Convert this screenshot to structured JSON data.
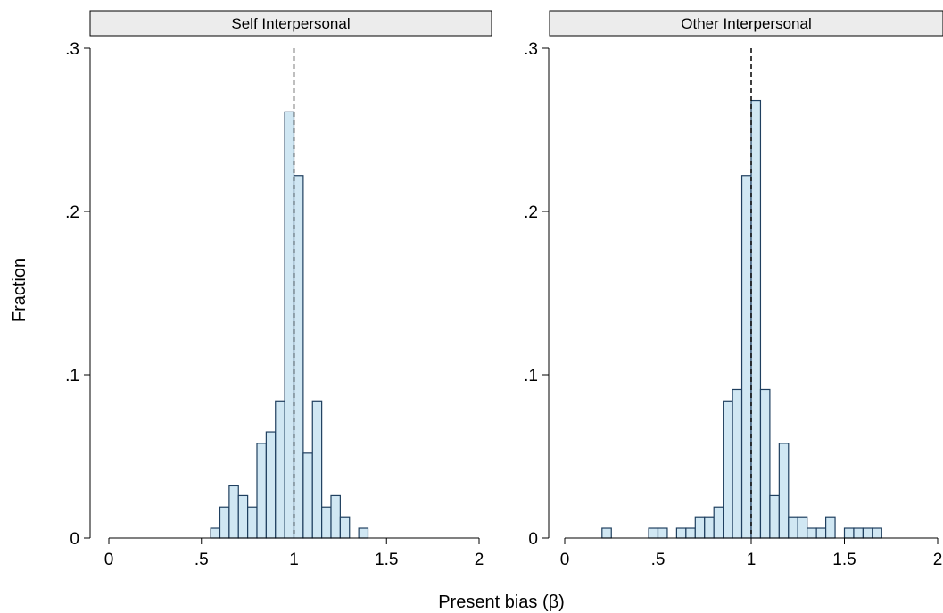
{
  "chart_data": [
    {
      "type": "bar",
      "title": "Self Interpersonal",
      "bin_width": 0.05,
      "ylim": [
        0,
        0.3
      ],
      "xlim": [
        0,
        2
      ],
      "xticks": [
        {
          "v": 0,
          "label": "0"
        },
        {
          "v": 0.5,
          "label": ".5"
        },
        {
          "v": 1,
          "label": "1"
        },
        {
          "v": 1.5,
          "label": "1.5"
        },
        {
          "v": 2,
          "label": "2"
        }
      ],
      "yticks": [
        {
          "v": 0,
          "label": "0"
        },
        {
          "v": 0.1,
          "label": ".1"
        },
        {
          "v": 0.2,
          "label": ".2"
        },
        {
          "v": 0.3,
          "label": ".3"
        }
      ],
      "reference_line_x": 1,
      "bins": [
        {
          "x": 0.55,
          "y": 0.006
        },
        {
          "x": 0.6,
          "y": 0.019
        },
        {
          "x": 0.65,
          "y": 0.032
        },
        {
          "x": 0.7,
          "y": 0.026
        },
        {
          "x": 0.75,
          "y": 0.019
        },
        {
          "x": 0.8,
          "y": 0.058
        },
        {
          "x": 0.85,
          "y": 0.065
        },
        {
          "x": 0.9,
          "y": 0.084
        },
        {
          "x": 0.95,
          "y": 0.261
        },
        {
          "x": 1.0,
          "y": 0.222
        },
        {
          "x": 1.05,
          "y": 0.052
        },
        {
          "x": 1.1,
          "y": 0.084
        },
        {
          "x": 1.15,
          "y": 0.019
        },
        {
          "x": 1.2,
          "y": 0.026
        },
        {
          "x": 1.25,
          "y": 0.013
        },
        {
          "x": 1.35,
          "y": 0.006
        }
      ]
    },
    {
      "type": "bar",
      "title": "Other Interpersonal",
      "bin_width": 0.05,
      "ylim": [
        0,
        0.3
      ],
      "xlim": [
        0,
        2
      ],
      "xticks": [
        {
          "v": 0,
          "label": "0"
        },
        {
          "v": 0.5,
          "label": ".5"
        },
        {
          "v": 1,
          "label": "1"
        },
        {
          "v": 1.5,
          "label": "1.5"
        },
        {
          "v": 2,
          "label": "2"
        }
      ],
      "yticks": [
        {
          "v": 0,
          "label": "0"
        },
        {
          "v": 0.1,
          "label": ".1"
        },
        {
          "v": 0.2,
          "label": ".2"
        },
        {
          "v": 0.3,
          "label": ".3"
        }
      ],
      "reference_line_x": 1,
      "bins": [
        {
          "x": 0.2,
          "y": 0.006
        },
        {
          "x": 0.45,
          "y": 0.006
        },
        {
          "x": 0.5,
          "y": 0.006
        },
        {
          "x": 0.6,
          "y": 0.006
        },
        {
          "x": 0.65,
          "y": 0.006
        },
        {
          "x": 0.7,
          "y": 0.013
        },
        {
          "x": 0.75,
          "y": 0.013
        },
        {
          "x": 0.8,
          "y": 0.019
        },
        {
          "x": 0.85,
          "y": 0.084
        },
        {
          "x": 0.9,
          "y": 0.091
        },
        {
          "x": 0.95,
          "y": 0.222
        },
        {
          "x": 1.0,
          "y": 0.268
        },
        {
          "x": 1.05,
          "y": 0.091
        },
        {
          "x": 1.1,
          "y": 0.026
        },
        {
          "x": 1.15,
          "y": 0.058
        },
        {
          "x": 1.2,
          "y": 0.013
        },
        {
          "x": 1.25,
          "y": 0.013
        },
        {
          "x": 1.3,
          "y": 0.006
        },
        {
          "x": 1.35,
          "y": 0.006
        },
        {
          "x": 1.4,
          "y": 0.013
        },
        {
          "x": 1.5,
          "y": 0.006
        },
        {
          "x": 1.55,
          "y": 0.006
        },
        {
          "x": 1.6,
          "y": 0.006
        },
        {
          "x": 1.65,
          "y": 0.006
        }
      ]
    }
  ],
  "shared": {
    "xlabel": "Present bias (β)",
    "ylabel": "Fraction"
  }
}
